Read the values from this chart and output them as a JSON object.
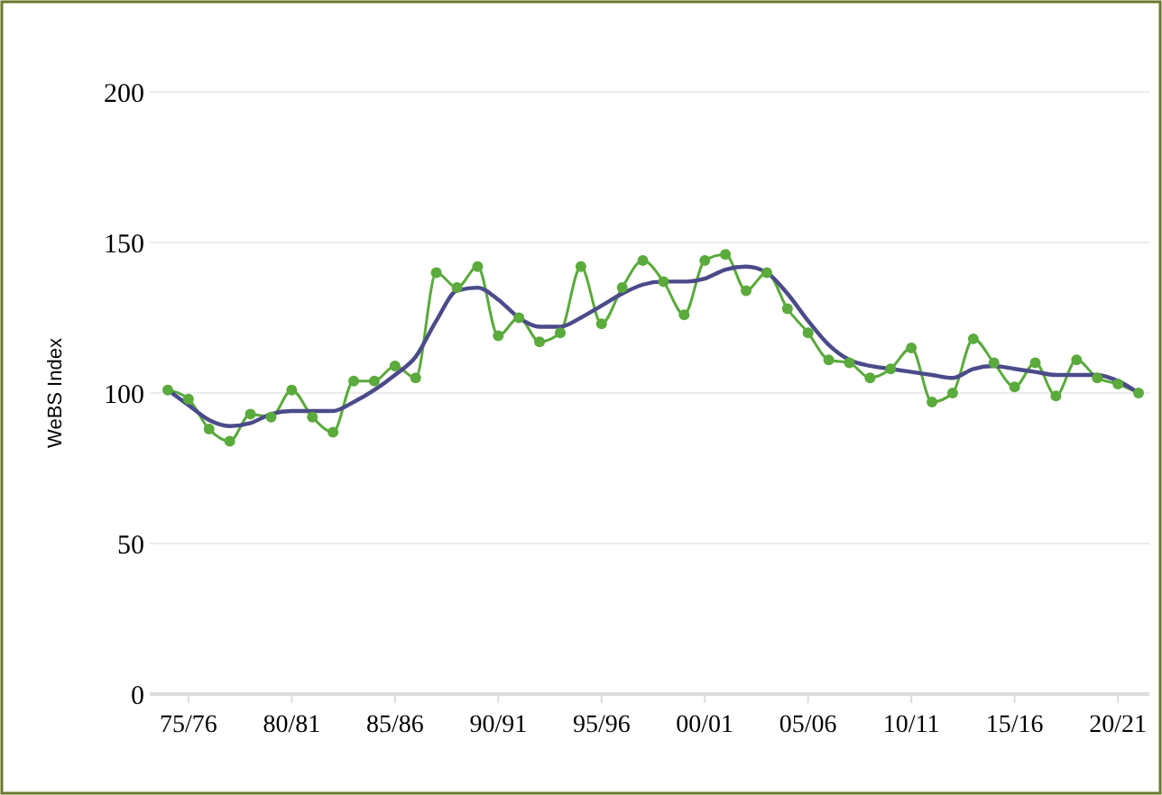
{
  "chart_data": {
    "type": "line",
    "ylabel": "WeBS Index",
    "categories": [
      null,
      "75/76",
      null,
      null,
      null,
      null,
      "80/81",
      null,
      null,
      null,
      null,
      "85/86",
      null,
      null,
      null,
      null,
      "90/91",
      null,
      null,
      null,
      null,
      "95/96",
      null,
      null,
      null,
      null,
      "00/01",
      null,
      null,
      null,
      null,
      "05/06",
      null,
      null,
      null,
      null,
      "10/11",
      null,
      null,
      null,
      null,
      "15/16",
      null,
      null,
      null,
      null,
      "20/21",
      null
    ],
    "series": [
      {
        "color": "#5aaa3c",
        "marker": "circle",
        "values": [
          101,
          98,
          88,
          84,
          93,
          92,
          101,
          92,
          87,
          104,
          104,
          109,
          105,
          140,
          135,
          142,
          119,
          125,
          117,
          120,
          142,
          123,
          135,
          144,
          137,
          126,
          144,
          146,
          134,
          140,
          128,
          120,
          111,
          110,
          105,
          108,
          115,
          97,
          100,
          118,
          110,
          102,
          110,
          99,
          111,
          105,
          103,
          100
        ]
      },
      {
        "color": "#4b4a8a",
        "marker": "none",
        "values": [
          101,
          96,
          91,
          89,
          90,
          93,
          94,
          94,
          94,
          97,
          101,
          106,
          112,
          124,
          134,
          135,
          131,
          125,
          122,
          122,
          125,
          129,
          133,
          136,
          137,
          137,
          138,
          141,
          142,
          140,
          133,
          124,
          116,
          111,
          109,
          108,
          107,
          106,
          105,
          108,
          109,
          108,
          107,
          106,
          106,
          106,
          104,
          100
        ]
      }
    ],
    "ylim": [
      0,
      200
    ],
    "yticks": [
      0,
      50,
      100,
      150,
      200
    ],
    "grid": "y"
  }
}
